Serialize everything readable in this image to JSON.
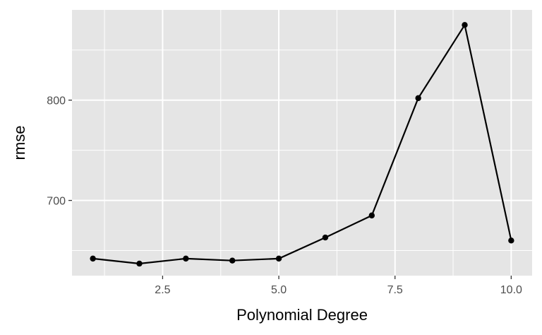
{
  "chart_data": {
    "type": "line",
    "title": "",
    "xlabel": "Polynomial Degree",
    "ylabel": "rmse",
    "x": [
      1,
      2,
      3,
      4,
      5,
      6,
      7,
      8,
      9,
      10
    ],
    "series": [
      {
        "values": [
          642,
          637,
          642,
          640,
          642,
          663,
          685,
          802,
          875,
          660
        ]
      }
    ],
    "xlim": [
      0.55,
      10.45
    ],
    "ylim": [
      625,
      890
    ],
    "x_ticks": [
      2.5,
      5.0,
      7.5,
      10.0
    ],
    "x_tick_labels": [
      "2.5",
      "5.0",
      "7.5",
      "10.0"
    ],
    "y_ticks": [
      700,
      800
    ],
    "y_tick_labels": [
      "700",
      "800"
    ],
    "grid": true,
    "legend": "none",
    "colors": {
      "panel_background": "#e5e5e5",
      "grid": "#ffffff",
      "line": "#000000",
      "points": "#000000"
    }
  }
}
